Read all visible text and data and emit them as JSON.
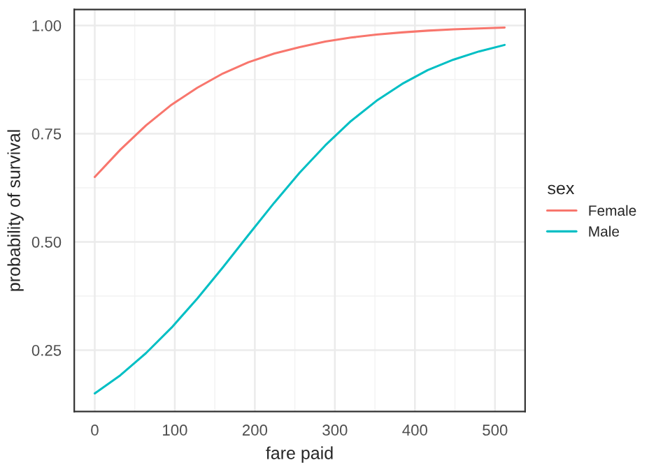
{
  "chart_data": {
    "type": "line",
    "xlabel": "fare paid",
    "ylabel": "probability of survival",
    "legend_title": "sex",
    "x": [
      0,
      32,
      64,
      96,
      128,
      160,
      192,
      224,
      256,
      288,
      320,
      352,
      384,
      416,
      448,
      480,
      512
    ],
    "series": [
      {
        "name": "Female",
        "color": "#f8766d",
        "values": [
          0.65,
          0.713,
          0.769,
          0.817,
          0.856,
          0.889,
          0.915,
          0.935,
          0.95,
          0.963,
          0.972,
          0.979,
          0.984,
          0.988,
          0.991,
          0.993,
          0.995
        ]
      },
      {
        "name": "Male",
        "color": "#00bfc4",
        "values": [
          0.15,
          0.192,
          0.243,
          0.302,
          0.369,
          0.441,
          0.516,
          0.59,
          0.66,
          0.723,
          0.779,
          0.826,
          0.865,
          0.897,
          0.921,
          0.94,
          0.955
        ]
      }
    ],
    "xlim": [
      -25.6,
      537.6
    ],
    "ylim": [
      0.108,
      1.037
    ],
    "xticks": [
      0,
      100,
      200,
      300,
      400,
      500
    ],
    "yticks": [
      {
        "value": 0.25,
        "label": "0.25"
      },
      {
        "value": 0.5,
        "label": "0.50"
      },
      {
        "value": 0.75,
        "label": "0.75"
      },
      {
        "value": 1.0,
        "label": "1.00"
      }
    ],
    "grid": true,
    "legend": "right",
    "marker": "none",
    "line_style": "solid"
  }
}
